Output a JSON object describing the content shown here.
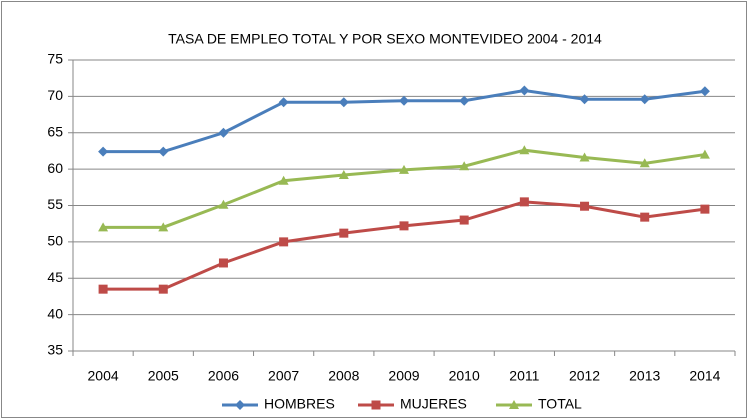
{
  "chart_data": {
    "type": "line",
    "title": "TASA DE EMPLEO TOTAL Y POR SEXO MONTEVIDEO 2004 - 2014",
    "categories": [
      "2004",
      "2005",
      "2006",
      "2007",
      "2008",
      "2009",
      "2010",
      "2011",
      "2012",
      "2013",
      "2014"
    ],
    "series": [
      {
        "name": "HOMBRES",
        "color": "#4a7ebb",
        "marker": "diamond",
        "values": [
          62.4,
          62.4,
          65.0,
          69.2,
          69.2,
          69.4,
          69.4,
          70.8,
          69.6,
          69.6,
          70.7
        ]
      },
      {
        "name": "MUJERES",
        "color": "#be4b48",
        "marker": "square",
        "values": [
          43.5,
          43.5,
          47.1,
          50.0,
          51.2,
          52.2,
          53.0,
          55.5,
          54.9,
          53.4,
          54.5
        ]
      },
      {
        "name": "TOTAL",
        "color": "#98b954",
        "marker": "triangle",
        "values": [
          52.0,
          52.0,
          55.1,
          58.4,
          59.2,
          59.9,
          60.4,
          62.6,
          61.6,
          60.8,
          62.0
        ]
      }
    ],
    "ylim": [
      35,
      75
    ],
    "yticks": [
      35,
      40,
      45,
      50,
      55,
      60,
      65,
      70,
      75
    ],
    "grid": true,
    "legend": "bottom"
  }
}
